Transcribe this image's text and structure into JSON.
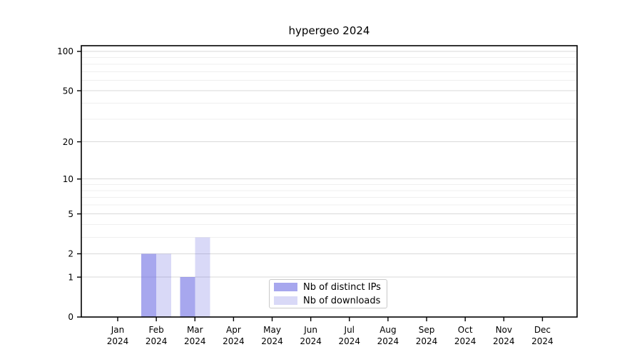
{
  "title": "hypergeo 2024",
  "chart_data": {
    "type": "bar",
    "title": "hypergeo 2024",
    "categories": [
      "Jan 2024",
      "Feb 2024",
      "Mar 2024",
      "Apr 2024",
      "May 2024",
      "Jun 2024",
      "Jul 2024",
      "Aug 2024",
      "Sep 2024",
      "Oct 2024",
      "Nov 2024",
      "Dec 2024"
    ],
    "series": [
      {
        "name": "Nb of distinct IPs",
        "color": "rgba(98,98,224,0.56)",
        "values": [
          0,
          2,
          1,
          0,
          0,
          0,
          0,
          0,
          0,
          0,
          0,
          0
        ]
      },
      {
        "name": "Nb of downloads",
        "color": "rgba(98,98,224,0.245)",
        "values": [
          0,
          2,
          3,
          0,
          0,
          0,
          0,
          0,
          0,
          0,
          0,
          0
        ]
      }
    ],
    "xlabel": "",
    "ylabel": "",
    "yscale": "symlog",
    "yscale_note": "position proportional to log10(1 + value)",
    "ylim": [
      0,
      110
    ],
    "yticks": [
      0,
      1,
      2,
      5,
      10,
      20,
      50,
      100
    ],
    "yticks_minor": [
      3,
      4,
      6,
      7,
      8,
      9,
      30,
      40,
      60,
      70,
      80,
      90
    ],
    "grid": "horizontal",
    "legend_position": "inside-bottom-center"
  },
  "colors": {
    "background": "#ffffff",
    "axis": "#000000",
    "text": "#000000",
    "grid_major": "#d9d9d9",
    "grid_minor": "#efefef",
    "legend_border": "#c9c9c9",
    "bar_distinct_ips": "rgba(98,98,224,0.56)",
    "bar_downloads": "rgba(98,98,224,0.245)"
  }
}
